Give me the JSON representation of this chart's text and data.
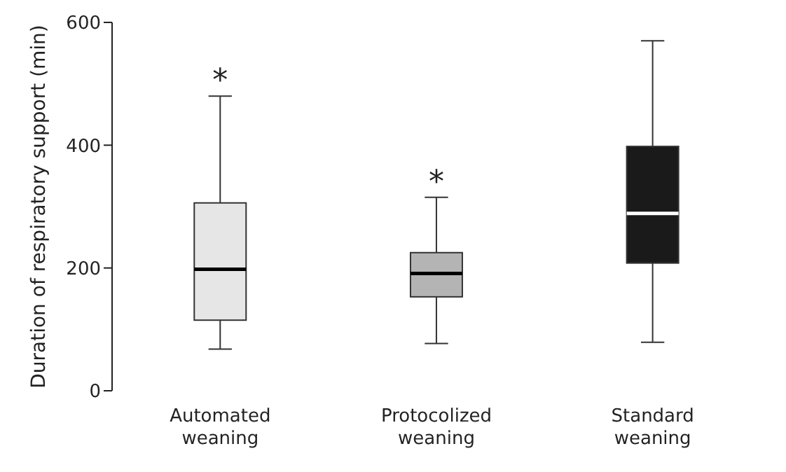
{
  "chart_data": {
    "type": "box",
    "ylabel": "Duration of respiratory support (min)",
    "categories": [
      "Automated\nweaning",
      "Protocolized\nweaning",
      "Standard\nweaning"
    ],
    "colors": [
      "#e6e6e6",
      "#b4b4b4",
      "#1a1a1a"
    ],
    "boxes": [
      {
        "low": 68,
        "q1": 115,
        "median": 198,
        "q3": 306,
        "high": 480
      },
      {
        "low": 77,
        "q1": 153,
        "median": 191,
        "q3": 225,
        "high": 315
      },
      {
        "low": 79,
        "q1": 208,
        "median": 289,
        "q3": 398,
        "high": 570
      }
    ],
    "ylim": [
      0,
      600
    ],
    "yticks": [
      0,
      200,
      400,
      600
    ],
    "grid": false,
    "legend": false,
    "annotations": [
      "*",
      "*"
    ]
  }
}
